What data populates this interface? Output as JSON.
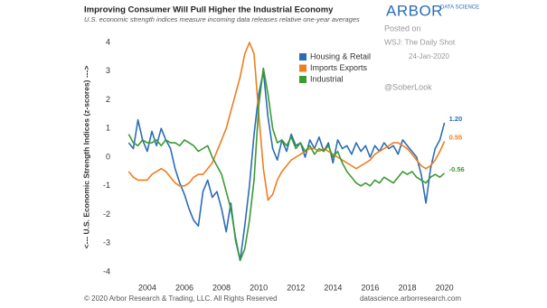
{
  "header": {
    "logo": "ARBOR",
    "logo_sub": "DATA SCIENCE",
    "posted_on": "Posted on",
    "source": "WSJ: The Daily Shot",
    "date": "24-Jan-2020",
    "handle": "@SoberLook"
  },
  "footer": {
    "copyright": "© 2020 Arbor Research & Trading, LLC. All Rights Reserved",
    "website": "datascience.arborresearch.com"
  },
  "chart_data": {
    "type": "line",
    "title": "Improving Consumer Will Pull Higher the Industrial Economy",
    "subtitle": "U.S. economic strength indices measure incoming data releases relative one-year averages",
    "ylabel": "<--- U.S. Economic Strength Indices (z-scores) --->",
    "xlim": [
      2002.4,
      2020.7
    ],
    "xticks": [
      2004,
      2006,
      2008,
      2010,
      2012,
      2014,
      2016,
      2018,
      2020
    ],
    "ylim": [
      -4.2,
      4.2
    ],
    "yticks": [
      -4,
      -3,
      -2,
      -1,
      0,
      1,
      2,
      3,
      4
    ],
    "grid": false,
    "legend": "top-center",
    "x": [
      2003,
      2003.25,
      2003.5,
      2003.75,
      2004,
      2004.25,
      2004.5,
      2004.75,
      2005,
      2005.25,
      2005.5,
      2005.75,
      2006,
      2006.25,
      2006.5,
      2006.75,
      2007,
      2007.25,
      2007.5,
      2007.75,
      2008,
      2008.25,
      2008.5,
      2008.75,
      2009,
      2009.25,
      2009.5,
      2009.75,
      2010,
      2010.25,
      2010.5,
      2010.75,
      2011,
      2011.25,
      2011.5,
      2011.75,
      2012,
      2012.25,
      2012.5,
      2012.75,
      2013,
      2013.25,
      2013.5,
      2013.75,
      2014,
      2014.25,
      2014.5,
      2014.75,
      2015,
      2015.25,
      2015.5,
      2015.75,
      2016,
      2016.25,
      2016.5,
      2016.75,
      2017,
      2017.25,
      2017.5,
      2017.75,
      2018,
      2018.25,
      2018.5,
      2018.75,
      2019,
      2019.25,
      2019.5,
      2019.75,
      2020
    ],
    "series": [
      {
        "name": "Housing & Retail",
        "color": "#2a6db5",
        "values": [
          0.5,
          0.3,
          1.3,
          0.6,
          0.2,
          0.9,
          0.4,
          1.0,
          0.6,
          0.3,
          -0.4,
          -0.9,
          -1.3,
          -1.8,
          -2.2,
          -2.4,
          -1.2,
          -0.8,
          -1.4,
          -1.2,
          -1.8,
          -2.6,
          -1.6,
          -2.9,
          -3.6,
          -2.4,
          -1.0,
          0.8,
          2.2,
          3.0,
          1.4,
          0.3,
          -0.1,
          0.6,
          0.2,
          0.8,
          0.4,
          0.5,
          0.0,
          0.6,
          0.3,
          0.7,
          0.2,
          0.5,
          -0.2,
          0.6,
          0.3,
          0.4,
          0.1,
          0.5,
          0.2,
          0.4,
          0.0,
          0.4,
          0.2,
          0.5,
          0.3,
          0.4,
          0.1,
          0.6,
          0.4,
          0.2,
          0.0,
          -0.6,
          -1.6,
          -0.4,
          0.3,
          0.6,
          1.2
        ],
        "value_labels": [
          null,
          null,
          null,
          null,
          null,
          null,
          null,
          null,
          null,
          null,
          null,
          null,
          null,
          null,
          null,
          null,
          null,
          null,
          null,
          null,
          null,
          null,
          null,
          null,
          null,
          null,
          null,
          null,
          null,
          null,
          null,
          null,
          null,
          null,
          null,
          null,
          null,
          null,
          null,
          null,
          null,
          null,
          null,
          null,
          null,
          null,
          null,
          null,
          null,
          null,
          null,
          null,
          null,
          null,
          null,
          null,
          null,
          null,
          null,
          null,
          null,
          null,
          null,
          null,
          null,
          null,
          null,
          null,
          "1.20"
        ]
      },
      {
        "name": "Imports Exports",
        "color": "#f07d1e",
        "values": [
          -0.5,
          -0.7,
          -0.8,
          -0.8,
          -0.8,
          -0.6,
          -0.5,
          -0.4,
          -0.5,
          -0.7,
          -0.9,
          -1.0,
          -1.0,
          -0.9,
          -0.7,
          -0.6,
          -0.6,
          -0.4,
          -0.2,
          0.2,
          0.6,
          1.0,
          1.6,
          2.2,
          2.8,
          3.6,
          4.0,
          3.6,
          1.5,
          -0.4,
          -1.5,
          -1.3,
          -0.8,
          -0.5,
          -0.3,
          -0.1,
          0.0,
          0.1,
          0.2,
          0.3,
          0.3,
          0.2,
          0.3,
          0.2,
          0.1,
          0.0,
          -0.1,
          -0.2,
          -0.3,
          -0.4,
          -0.3,
          -0.2,
          -0.1,
          0.1,
          0.2,
          0.3,
          0.4,
          0.5,
          0.5,
          0.4,
          0.3,
          0.1,
          -0.1,
          -0.3,
          -0.4,
          -0.3,
          -0.1,
          0.2,
          0.55
        ],
        "value_labels": [
          null,
          null,
          null,
          null,
          null,
          null,
          null,
          null,
          null,
          null,
          null,
          null,
          null,
          null,
          null,
          null,
          null,
          null,
          null,
          null,
          null,
          null,
          null,
          null,
          null,
          null,
          null,
          null,
          null,
          null,
          null,
          null,
          null,
          null,
          null,
          null,
          null,
          null,
          null,
          null,
          null,
          null,
          null,
          null,
          null,
          null,
          null,
          null,
          null,
          null,
          null,
          null,
          null,
          null,
          null,
          null,
          null,
          null,
          null,
          null,
          null,
          null,
          null,
          null,
          null,
          null,
          null,
          null,
          "0.55"
        ]
      },
      {
        "name": "Industrial",
        "color": "#3b9a34",
        "values": [
          0.8,
          0.5,
          0.4,
          0.6,
          0.5,
          0.5,
          0.6,
          0.4,
          0.6,
          0.5,
          0.5,
          0.4,
          0.6,
          0.5,
          0.4,
          0.2,
          0.3,
          0.4,
          0.0,
          -0.3,
          -0.6,
          -1.2,
          -1.8,
          -2.8,
          -3.6,
          -3.2,
          -2.2,
          -0.8,
          1.8,
          3.1,
          2.2,
          1.0,
          0.5,
          0.6,
          0.4,
          0.7,
          0.3,
          0.5,
          0.2,
          0.4,
          0.1,
          0.3,
          0.2,
          0.4,
          0.0,
          0.2,
          -0.2,
          -0.5,
          -0.7,
          -0.9,
          -1.0,
          -0.9,
          -1.0,
          -0.8,
          -0.9,
          -0.7,
          -0.8,
          -0.9,
          -0.7,
          -0.5,
          -0.6,
          -0.5,
          -0.7,
          -0.8,
          -0.9,
          -0.7,
          -0.6,
          -0.7,
          -0.56
        ],
        "value_labels": [
          null,
          null,
          null,
          null,
          null,
          null,
          null,
          null,
          null,
          null,
          null,
          null,
          null,
          null,
          null,
          null,
          null,
          null,
          null,
          null,
          null,
          null,
          null,
          null,
          null,
          null,
          null,
          null,
          null,
          null,
          null,
          null,
          null,
          null,
          null,
          null,
          null,
          null,
          null,
          null,
          null,
          null,
          null,
          null,
          null,
          null,
          null,
          null,
          null,
          null,
          null,
          null,
          null,
          null,
          null,
          null,
          null,
          null,
          null,
          null,
          null,
          null,
          null,
          null,
          null,
          null,
          null,
          null,
          "-0.56"
        ]
      }
    ]
  }
}
